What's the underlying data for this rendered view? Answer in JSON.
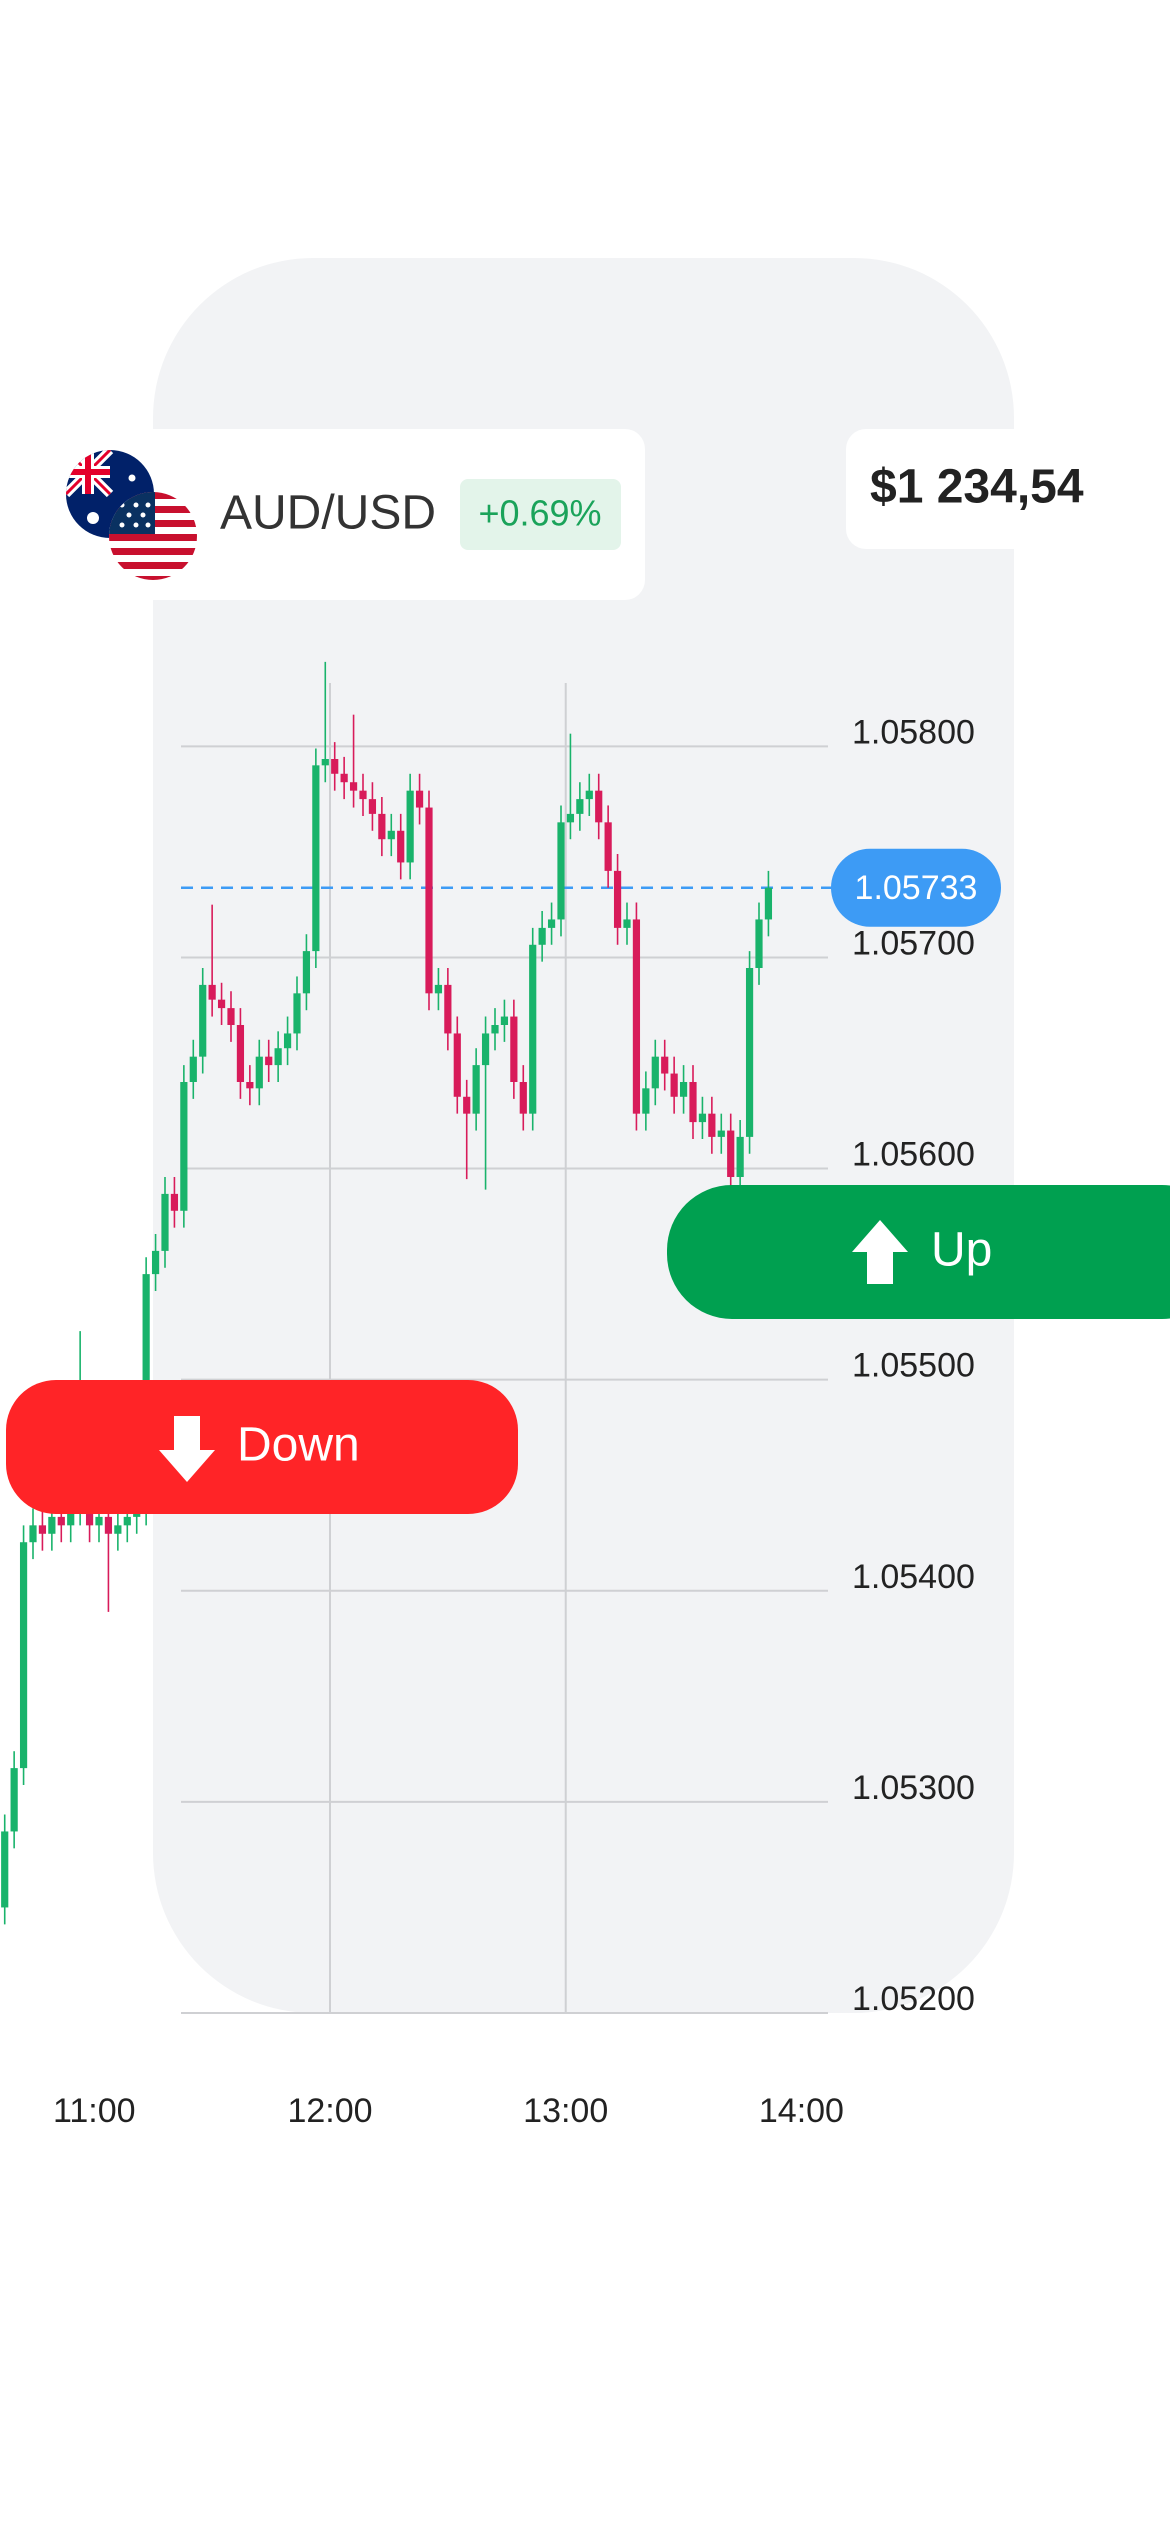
{
  "pair": "AUD/USD",
  "change": "+0.69%",
  "balance": "$1 234,54",
  "buttons": {
    "up": "Up",
    "down": "Down"
  },
  "chart_data": {
    "type": "candlestick",
    "up_color": "#19b36b",
    "down_color": "#d81b5a",
    "grid": true,
    "xlim": [
      10.6,
      14.1
    ],
    "ylim": [
      1.052,
      1.0583
    ],
    "xticks": [
      {
        "value": 11,
        "label": "11:00"
      },
      {
        "value": 12,
        "label": "12:00"
      },
      {
        "value": 13,
        "label": "13:00"
      },
      {
        "value": 14,
        "label": "14:00"
      }
    ],
    "yticks": [
      {
        "value": 1.058,
        "label": "1.05800"
      },
      {
        "value": 1.057,
        "label": "1.05700"
      },
      {
        "value": 1.056,
        "label": "1.05600"
      },
      {
        "value": 1.055,
        "label": "1.05500"
      },
      {
        "value": 1.054,
        "label": "1.05400"
      },
      {
        "value": 1.053,
        "label": "1.05300"
      },
      {
        "value": 1.052,
        "label": "1.05200"
      }
    ],
    "last_price": 1.05733,
    "x": [
      10.62,
      10.66,
      10.7,
      10.74,
      10.78,
      10.82,
      10.86,
      10.9,
      10.94,
      10.98,
      11.02,
      11.06,
      11.1,
      11.14,
      11.18,
      11.22,
      11.26,
      11.3,
      11.34,
      11.38,
      11.42,
      11.46,
      11.5,
      11.54,
      11.58,
      11.62,
      11.66,
      11.7,
      11.74,
      11.78,
      11.82,
      11.86,
      11.9,
      11.94,
      11.98,
      12.02,
      12.06,
      12.1,
      12.14,
      12.18,
      12.22,
      12.26,
      12.3,
      12.34,
      12.38,
      12.42,
      12.46,
      12.5,
      12.54,
      12.58,
      12.62,
      12.66,
      12.7,
      12.74,
      12.78,
      12.82,
      12.86,
      12.9,
      12.94,
      12.98,
      13.02,
      13.06,
      13.1,
      13.14,
      13.18,
      13.22,
      13.26,
      13.3,
      13.34,
      13.38,
      13.42,
      13.46,
      13.5,
      13.54,
      13.58,
      13.62,
      13.66,
      13.7,
      13.74,
      13.78,
      13.82,
      13.86
    ],
    "open": [
      1.0525,
      1.05286,
      1.05316,
      1.05423,
      1.05431,
      1.05427,
      1.05435,
      1.05431,
      1.05439,
      1.05443,
      1.05431,
      1.05435,
      1.05427,
      1.05431,
      1.05435,
      1.05439,
      1.0555,
      1.05561,
      1.05588,
      1.0558,
      1.05641,
      1.05653,
      1.05687,
      1.0568,
      1.05676,
      1.05668,
      1.05641,
      1.05638,
      1.05653,
      1.05649,
      1.05657,
      1.05664,
      1.05683,
      1.05703,
      1.05791,
      1.05794,
      1.05787,
      1.05783,
      1.05779,
      1.05775,
      1.05768,
      1.05756,
      1.0576,
      1.05745,
      1.05779,
      1.05771,
      1.05683,
      1.05687,
      1.05664,
      1.05634,
      1.05626,
      1.05649,
      1.05664,
      1.05668,
      1.05672,
      1.05641,
      1.05626,
      1.05706,
      1.05714,
      1.05718,
      1.05764,
      1.05768,
      1.05775,
      1.05779,
      1.05764,
      1.05741,
      1.05714,
      1.05718,
      1.05626,
      1.05638,
      1.05653,
      1.05645,
      1.05634,
      1.05641,
      1.05622,
      1.05626,
      1.05615,
      1.05618,
      1.05596,
      1.05615,
      1.05695,
      1.05718
    ],
    "high": [
      1.05294,
      1.05324,
      1.05431,
      1.05439,
      1.05439,
      1.05443,
      1.05443,
      1.05447,
      1.05523,
      1.05451,
      1.05443,
      1.05443,
      1.05439,
      1.05443,
      1.05447,
      1.05558,
      1.05569,
      1.05596,
      1.05596,
      1.05649,
      1.05661,
      1.05695,
      1.05725,
      1.05688,
      1.05684,
      1.05676,
      1.05649,
      1.05661,
      1.05661,
      1.05665,
      1.05672,
      1.05691,
      1.05711,
      1.05799,
      1.0584,
      1.05802,
      1.05795,
      1.05815,
      1.05787,
      1.05783,
      1.05776,
      1.05768,
      1.05768,
      1.05787,
      1.05787,
      1.05779,
      1.05695,
      1.05695,
      1.05672,
      1.05642,
      1.05657,
      1.05672,
      1.05676,
      1.0568,
      1.0568,
      1.05649,
      1.05714,
      1.05722,
      1.05726,
      1.05772,
      1.05806,
      1.05783,
      1.05787,
      1.05787,
      1.05772,
      1.05749,
      1.05726,
      1.05726,
      1.05646,
      1.05661,
      1.05661,
      1.05653,
      1.05649,
      1.05649,
      1.05634,
      1.05634,
      1.05626,
      1.05626,
      1.05623,
      1.05703,
      1.05726,
      1.05741
    ],
    "low": [
      1.05242,
      1.05278,
      1.05308,
      1.05415,
      1.05419,
      1.05419,
      1.05423,
      1.05423,
      1.05431,
      1.05423,
      1.05423,
      1.0539,
      1.05419,
      1.05423,
      1.05427,
      1.05431,
      1.05542,
      1.05553,
      1.05572,
      1.05572,
      1.05633,
      1.05645,
      1.05672,
      1.05668,
      1.0566,
      1.05633,
      1.0563,
      1.0563,
      1.05641,
      1.05641,
      1.05649,
      1.05656,
      1.05675,
      1.05695,
      1.05783,
      1.05779,
      1.05775,
      1.05771,
      1.05767,
      1.0576,
      1.05748,
      1.05748,
      1.05737,
      1.05737,
      1.05763,
      1.05675,
      1.05675,
      1.05656,
      1.05626,
      1.05595,
      1.05618,
      1.0559,
      1.05656,
      1.0566,
      1.05633,
      1.05618,
      1.05618,
      1.05698,
      1.05706,
      1.0571,
      1.05756,
      1.0576,
      1.05767,
      1.05756,
      1.05733,
      1.05706,
      1.05706,
      1.05618,
      1.05618,
      1.0563,
      1.05637,
      1.05626,
      1.05626,
      1.05614,
      1.05614,
      1.05607,
      1.05607,
      1.05588,
      1.05588,
      1.05607,
      1.05687,
      1.0571
    ],
    "close": [
      1.05286,
      1.05316,
      1.05423,
      1.05431,
      1.05427,
      1.05435,
      1.05431,
      1.05439,
      1.05443,
      1.05431,
      1.05435,
      1.05427,
      1.05431,
      1.05435,
      1.05439,
      1.0555,
      1.05561,
      1.05588,
      1.0558,
      1.05641,
      1.05653,
      1.05687,
      1.0568,
      1.05676,
      1.05668,
      1.05641,
      1.05638,
      1.05653,
      1.05649,
      1.05657,
      1.05664,
      1.05683,
      1.05703,
      1.05791,
      1.05794,
      1.05787,
      1.05783,
      1.05779,
      1.05775,
      1.05768,
      1.05756,
      1.0576,
      1.05745,
      1.05779,
      1.05771,
      1.05683,
      1.05687,
      1.05664,
      1.05634,
      1.05626,
      1.05649,
      1.05664,
      1.05668,
      1.05672,
      1.05641,
      1.05626,
      1.05706,
      1.05714,
      1.05718,
      1.05764,
      1.05768,
      1.05775,
      1.05779,
      1.05764,
      1.05741,
      1.05714,
      1.05718,
      1.05626,
      1.05638,
      1.05653,
      1.05645,
      1.05634,
      1.05641,
      1.05622,
      1.05626,
      1.05615,
      1.05618,
      1.05596,
      1.05615,
      1.05695,
      1.05718,
      1.05733
    ]
  }
}
